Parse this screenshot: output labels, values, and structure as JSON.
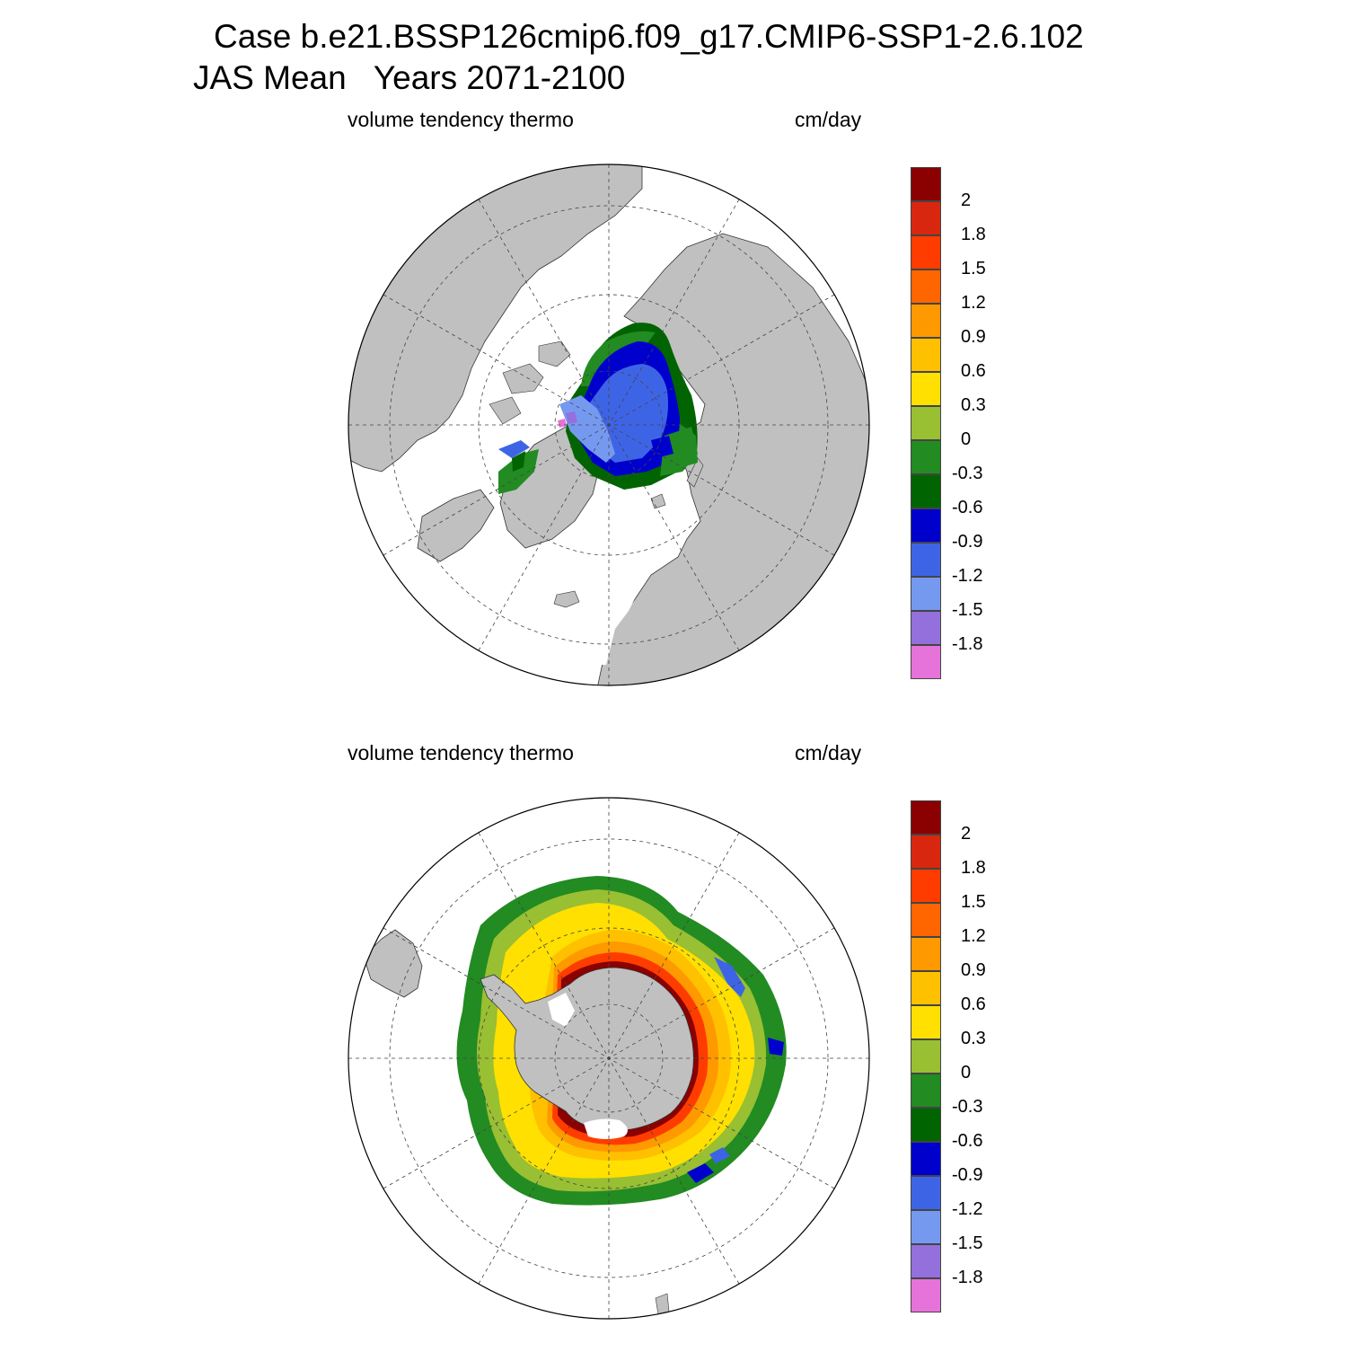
{
  "title": {
    "line1": "Case b.e21.BSSP126cmip6.f09_g17.CMIP6-SSP1-2.6.102",
    "line2": "JAS Mean   Years 2071-2100"
  },
  "panels": [
    {
      "left_label": "volume tendency thermo",
      "right_label": "cm/day",
      "hemisphere": "north"
    },
    {
      "left_label": "volume tendency thermo",
      "right_label": "cm/day",
      "hemisphere": "south"
    }
  ],
  "colorbar": {
    "labels": [
      "2",
      "1.8",
      "1.5",
      "1.2",
      "0.9",
      "0.6",
      "0.3",
      "0",
      "-0.3",
      "-0.6",
      "-0.9",
      "-1.2",
      "-1.5",
      "-1.8"
    ],
    "colors": [
      "#8b0000",
      "#d9270f",
      "#ff3c00",
      "#ff6600",
      "#ff9900",
      "#ffc000",
      "#ffe000",
      "#99bf33",
      "#228b22",
      "#006400",
      "#0000cd",
      "#3e64e6",
      "#7699f0",
      "#9370db",
      "#e673d9"
    ]
  },
  "map_colors": {
    "land": "#c0c0c0",
    "ocean": "#ffffff"
  }
}
